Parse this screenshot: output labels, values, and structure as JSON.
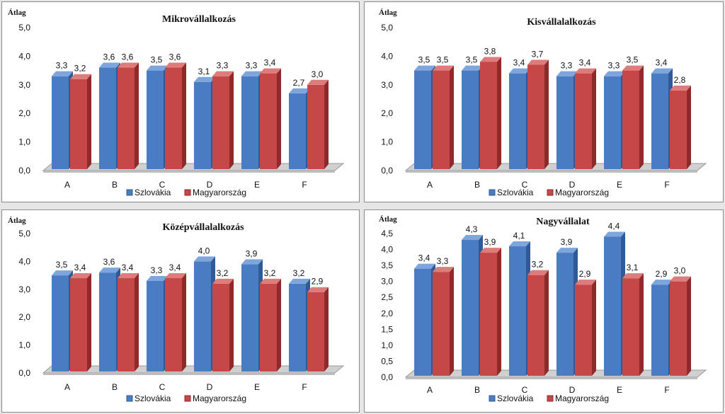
{
  "colors": {
    "szlovakia": {
      "front": "#4a7cc4",
      "side": "#2f5a97",
      "top": "#7fa6dc"
    },
    "magyarorszag": {
      "front": "#c64747",
      "side": "#8f2a2a",
      "top": "#de7b7b"
    },
    "floor": "#d0d0d0",
    "floor_edge": "#9a9a9a"
  },
  "chart_data": [
    {
      "type": "bar",
      "title": "Mikrovállalkozás",
      "ylabel": "Átlag",
      "xlabel": "",
      "categories": [
        "A",
        "B",
        "C",
        "D",
        "E",
        "F"
      ],
      "ylim": [
        0,
        5
      ],
      "yticks": [
        "0,0",
        "1,0",
        "2,0",
        "3,0",
        "4,0",
        "5,0"
      ],
      "ytick_values": [
        0,
        1,
        2,
        3,
        4,
        5
      ],
      "series": [
        {
          "name": "Szlovákia",
          "values": [
            3.3,
            3.6,
            3.5,
            3.1,
            3.3,
            2.7
          ],
          "labels": [
            "3,3",
            "3,6",
            "3,5",
            "3,1",
            "3,3",
            "2,7"
          ]
        },
        {
          "name": "Magyarország",
          "values": [
            3.2,
            3.6,
            3.6,
            3.3,
            3.4,
            3.0
          ],
          "labels": [
            "3,2",
            "3,6",
            "3,6",
            "3,3",
            "3,4",
            "3,0"
          ]
        }
      ],
      "legend": "bottom"
    },
    {
      "type": "bar",
      "title": "Kisvállalalkozás",
      "ylabel": "Átlag",
      "xlabel": "",
      "categories": [
        "A",
        "B",
        "C",
        "D",
        "E",
        "F"
      ],
      "ylim": [
        0,
        5
      ],
      "yticks": [
        "0,0",
        "1,0",
        "2,0",
        "3,0",
        "4,0",
        "5,0"
      ],
      "ytick_values": [
        0,
        1,
        2,
        3,
        4,
        5
      ],
      "series": [
        {
          "name": "Szlovákia",
          "values": [
            3.5,
            3.5,
            3.4,
            3.3,
            3.3,
            3.4
          ],
          "labels": [
            "3,5",
            "3,5",
            "3,4",
            "3,3",
            "3,3",
            "3,4"
          ]
        },
        {
          "name": "Magyarország",
          "values": [
            3.5,
            3.8,
            3.7,
            3.4,
            3.5,
            2.8
          ],
          "labels": [
            "3,5",
            "3,8",
            "3,7",
            "3,4",
            "3,5",
            "2,8"
          ]
        }
      ],
      "legend": "bottom"
    },
    {
      "type": "bar",
      "title": "Középvállalalkozás",
      "ylabel": "Átlag",
      "xlabel": "",
      "categories": [
        "A",
        "B",
        "C",
        "D",
        "E",
        "F"
      ],
      "ylim": [
        0,
        5
      ],
      "yticks": [
        "0,0",
        "1,0",
        "2,0",
        "3,0",
        "4,0",
        "5,0"
      ],
      "ytick_values": [
        0,
        1,
        2,
        3,
        4,
        5
      ],
      "series": [
        {
          "name": "Szlovákia",
          "values": [
            3.5,
            3.6,
            3.3,
            4.0,
            3.9,
            3.2
          ],
          "labels": [
            "3,5",
            "3,6",
            "3,3",
            "4,0",
            "3,9",
            "3,2"
          ]
        },
        {
          "name": "Magyarország",
          "values": [
            3.4,
            3.4,
            3.4,
            3.2,
            3.2,
            2.9
          ],
          "labels": [
            "3,4",
            "3,4",
            "3,4",
            "3,2",
            "3,2",
            "2,9"
          ]
        }
      ],
      "legend": "bottom"
    },
    {
      "type": "bar",
      "title": "Nagyvállalat",
      "ylabel": "Átlag",
      "xlabel": "",
      "categories": [
        "A",
        "B",
        "C",
        "D",
        "E",
        "F"
      ],
      "ylim": [
        0,
        4.5
      ],
      "yticks": [
        "0,0",
        "0,5",
        "1,0",
        "1,5",
        "2,0",
        "2,5",
        "3,0",
        "3,5",
        "4,0",
        "4,5"
      ],
      "ytick_values": [
        0,
        0.5,
        1,
        1.5,
        2,
        2.5,
        3,
        3.5,
        4,
        4.5
      ],
      "series": [
        {
          "name": "Szlovákia",
          "values": [
            3.4,
            4.3,
            4.1,
            3.9,
            4.4,
            2.9
          ],
          "labels": [
            "3,4",
            "4,3",
            "4,1",
            "3,9",
            "4,4",
            "2,9"
          ]
        },
        {
          "name": "Magyarország",
          "values": [
            3.3,
            3.9,
            3.2,
            2.9,
            3.1,
            3.0
          ],
          "labels": [
            "3,3",
            "3,9",
            "3,2",
            "2,9",
            "3,1",
            "3,0"
          ]
        }
      ],
      "legend": "bottom"
    }
  ]
}
